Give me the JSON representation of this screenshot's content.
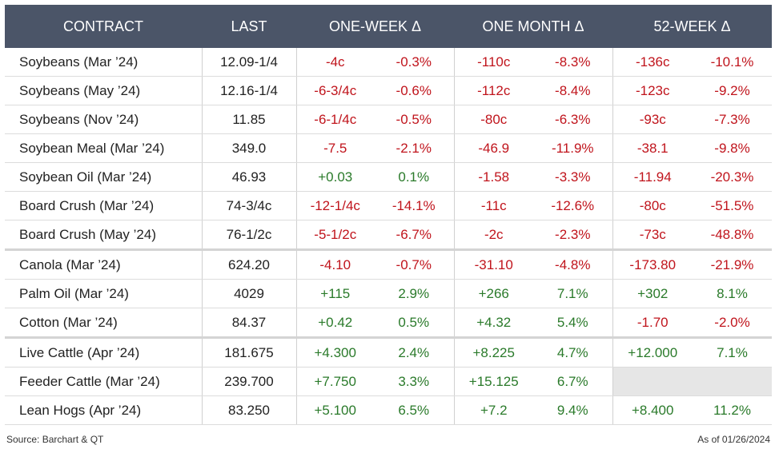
{
  "table": {
    "header": [
      {
        "label": "CONTRACT",
        "span": 1
      },
      {
        "label": "LAST",
        "span": 1
      },
      {
        "label": "ONE-WEEK Δ",
        "span": 2
      },
      {
        "label": "ONE MONTH Δ",
        "span": 2
      },
      {
        "label": "52-WEEK Δ",
        "span": 2
      }
    ],
    "groups": [
      [
        [
          "Soybeans (Mar ’24)",
          "12.09-1/4",
          "-4c",
          "-0.3%",
          "-110c",
          "-8.3%",
          "-136c",
          "-10.1%"
        ],
        [
          "Soybeans (May ’24)",
          "12.16-1/4",
          "-6-3/4c",
          "-0.6%",
          "-112c",
          "-8.4%",
          "-123c",
          "-9.2%"
        ],
        [
          "Soybeans (Nov ’24)",
          "11.85",
          "-6-1/4c",
          "-0.5%",
          "-80c",
          "-6.3%",
          "-93c",
          "-7.3%"
        ],
        [
          "Soybean Meal (Mar ’24)",
          "349.0",
          "-7.5",
          "-2.1%",
          "-46.9",
          "-11.9%",
          "-38.1",
          "-9.8%"
        ],
        [
          "Soybean Oil (Mar ’24)",
          "46.93",
          "+0.03",
          "0.1%",
          "-1.58",
          "-3.3%",
          "-11.94",
          "-20.3%"
        ],
        [
          "Board Crush (Mar ’24)",
          "74-3/4c",
          "-12-1/4c",
          "-14.1%",
          "-11c",
          "-12.6%",
          "-80c",
          "-51.5%"
        ],
        [
          "Board Crush (May ’24)",
          "76-1/2c",
          "-5-1/2c",
          "-6.7%",
          "-2c",
          "-2.3%",
          "-73c",
          "-48.8%"
        ]
      ],
      [
        [
          "Canola (Mar ’24)",
          "624.20",
          "-4.10",
          "-0.7%",
          "-31.10",
          "-4.8%",
          "-173.80",
          "-21.9%"
        ],
        [
          "Palm Oil (Mar ’24)",
          "4029",
          "+115",
          "2.9%",
          "+266",
          "7.1%",
          "+302",
          "8.1%"
        ],
        [
          "Cotton (Mar ’24)",
          "84.37",
          "+0.42",
          "0.5%",
          "+4.32",
          "5.4%",
          "-1.70",
          "-2.0%"
        ]
      ],
      [
        [
          "Live Cattle (Apr ’24)",
          "181.675",
          "+4.300",
          "2.4%",
          "+8.225",
          "4.7%",
          "+12.000",
          "7.1%"
        ],
        [
          "Feeder Cattle (Mar ’24)",
          "239.700",
          "+7.750",
          "3.3%",
          "+15.125",
          "6.7%",
          null,
          null
        ],
        [
          "Lean Hogs (Apr ’24)",
          "83.250",
          "+5.100",
          "6.5%",
          "+7.2",
          "9.4%",
          "+8.400",
          "11.2%"
        ]
      ]
    ]
  },
  "footer": {
    "source": "Source: Barchart & QT",
    "date": "As of 01/26/2024"
  },
  "colors": {
    "negative": "#c0141c",
    "positive": "#2a7a2a",
    "header": "#4b5568"
  }
}
